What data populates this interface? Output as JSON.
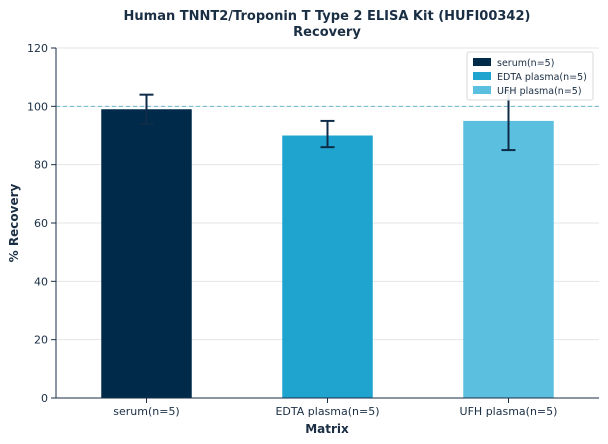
{
  "chart_data": {
    "type": "bar",
    "title_line1": "Human TNNT2/Troponin T Type 2 ELISA Kit (HUFI00342)",
    "title_line2": "Recovery",
    "xlabel": "Matrix",
    "ylabel": "% Recovery",
    "categories": [
      "serum(n=5)",
      "EDTA plasma(n=5)",
      "UFH plasma(n=5)"
    ],
    "values": [
      99,
      90,
      95
    ],
    "error_low": [
      94,
      86,
      85
    ],
    "error_high": [
      104,
      95,
      105
    ],
    "colors": [
      "#002a4a",
      "#1fa4d0",
      "#5bbfe0"
    ],
    "ylim": [
      0,
      120
    ],
    "yticks": [
      0,
      20,
      40,
      60,
      80,
      100,
      120
    ],
    "reference_line": 100,
    "reference_line_color": "#6ab8cc",
    "grid": true,
    "grid_axis": "y",
    "legend_position": "top-right",
    "legend": [
      "serum(n=5)",
      "EDTA plasma(n=5)",
      "UFH plasma(n=5)"
    ]
  }
}
